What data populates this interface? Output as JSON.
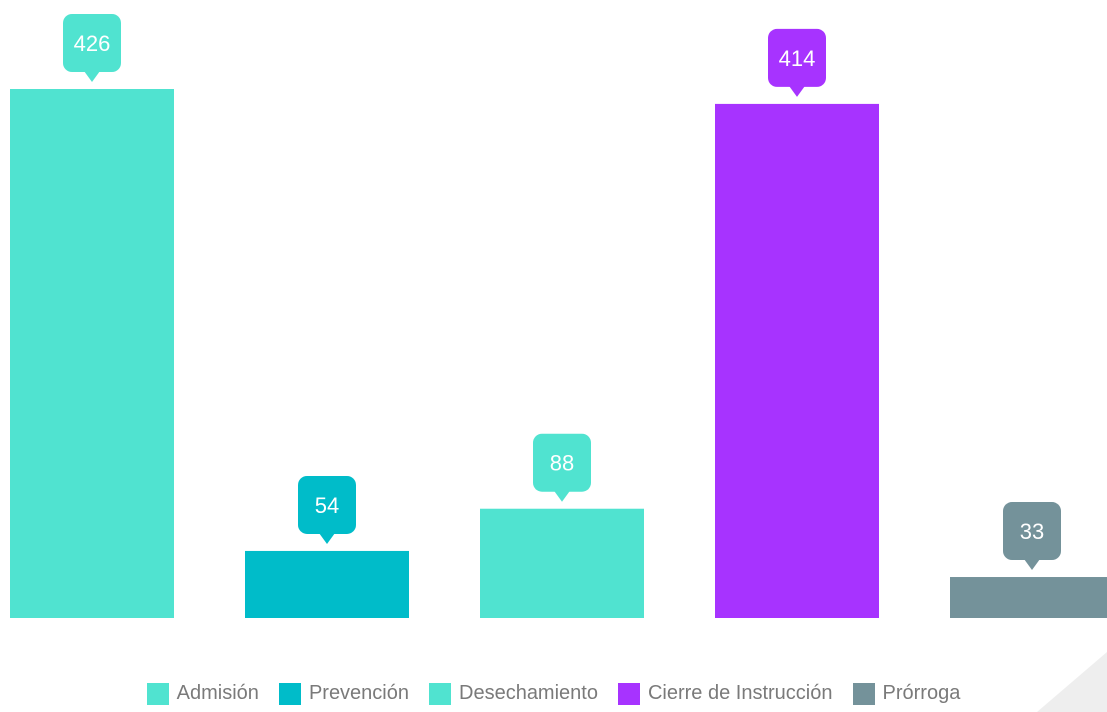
{
  "chart_data": {
    "type": "bar",
    "categories": [
      "Admisión",
      "Prevención",
      "Desechamiento",
      "Cierre de Instrucción",
      "Prórroga"
    ],
    "values": [
      426,
      54,
      88,
      414,
      33
    ],
    "colors": [
      "#50e3d0",
      "#00bcc9",
      "#50e3d0",
      "#a733ff",
      "#74929a"
    ],
    "title": "",
    "xlabel": "",
    "ylabel": "",
    "ylim": [
      0,
      426
    ],
    "grid": false,
    "legend_position": "bottom",
    "data_labels": true
  },
  "legend": [
    {
      "label": "Admisión",
      "color": "#50e3d0"
    },
    {
      "label": "Prevención",
      "color": "#00bcc9"
    },
    {
      "label": "Desechamiento",
      "color": "#50e3d0"
    },
    {
      "label": "Cierre de Instrucción",
      "color": "#a733ff"
    },
    {
      "label": "Prórroga",
      "color": "#74929a"
    }
  ]
}
